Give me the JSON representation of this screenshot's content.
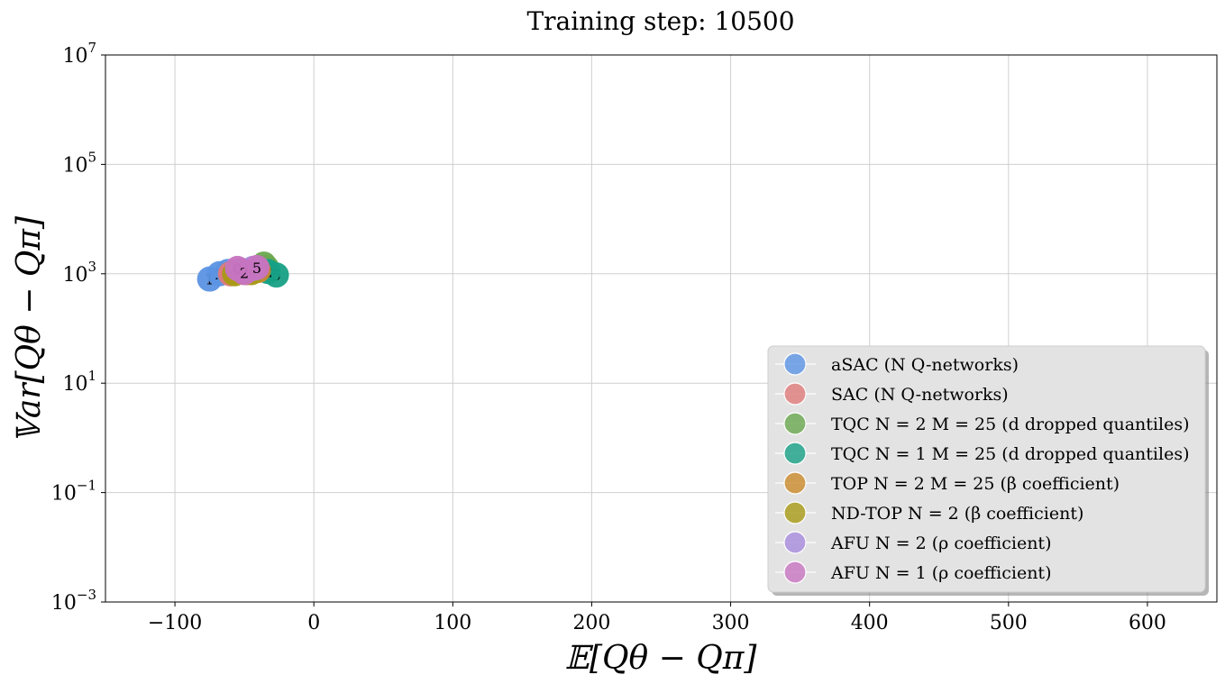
{
  "chart_data": {
    "type": "scatter",
    "title": "Training step: 10500",
    "xlabel": "𝔼[Qθ − Qπ]",
    "ylabel": "𝕍ar[Qθ − Qπ]",
    "xlim": [
      -150,
      650
    ],
    "ylim": [
      0.001,
      10000000
    ],
    "yscale": "log",
    "grid": true,
    "legend_position": "lower-right",
    "x_ticks": [
      "−100",
      "0",
      "100",
      "200",
      "300",
      "400",
      "500",
      "600"
    ],
    "x_tick_values": [
      -100,
      0,
      100,
      200,
      300,
      400,
      500,
      600
    ],
    "y_ticks": [
      {
        "base": "10",
        "exp": "−3",
        "value": 0.001
      },
      {
        "base": "10",
        "exp": "−1",
        "value": 0.1
      },
      {
        "base": "10",
        "exp": "1",
        "value": 10
      },
      {
        "base": "10",
        "exp": "3",
        "value": 1000
      },
      {
        "base": "10",
        "exp": "5",
        "value": 100000
      },
      {
        "base": "10",
        "exp": "7",
        "value": 10000000
      }
    ],
    "series": [
      {
        "name": "aSAC (N Q-networks)",
        "color": "#5b93e3",
        "points": [
          {
            "x": -75,
            "y": 800,
            "label": "1"
          },
          {
            "x": -68,
            "y": 1000,
            "label": "2"
          },
          {
            "x": -62,
            "y": 1100,
            "label": "3"
          }
        ]
      },
      {
        "name": "SAC (N Q-networks)",
        "color": "#e07a7a",
        "points": [
          {
            "x": -60,
            "y": 1000,
            "label": "2"
          },
          {
            "x": -56,
            "y": 1100,
            "label": "3"
          }
        ]
      },
      {
        "name": "TQC N = 2 M = 25 (d dropped quantiles)",
        "color": "#6aa84f",
        "points": [
          {
            "x": -36,
            "y": 1500,
            "label": "5"
          },
          {
            "x": -34,
            "y": 1300,
            "label": "3"
          }
        ]
      },
      {
        "name": "TQC N = 1 M = 25 (d dropped quantiles)",
        "color": "#16a085",
        "points": [
          {
            "x": -27,
            "y": 950,
            "label": "5"
          },
          {
            "x": -33,
            "y": 1100,
            "label": "2"
          }
        ]
      },
      {
        "name": "TOP N = 2 M = 25 (β coefficient)",
        "color": "#c98a2b",
        "points": [
          {
            "x": -48,
            "y": 1050,
            "label": "0"
          },
          {
            "x": -40,
            "y": 1150,
            "label": "1"
          }
        ]
      },
      {
        "name": "ND-TOP N = 2 (β coefficient)",
        "color": "#a89a14",
        "points": [
          {
            "x": -57,
            "y": 1000,
            "label": "0"
          },
          {
            "x": -45,
            "y": 1050,
            "label": "1"
          }
        ]
      },
      {
        "name": "AFU N = 2 (ρ coefficient)",
        "color": "#a78bdc",
        "points": [
          {
            "x": -52,
            "y": 1150,
            "label": "0"
          },
          {
            "x": -44,
            "y": 1250,
            "label": "5"
          }
        ]
      },
      {
        "name": "AFU N = 1 (ρ coefficient)",
        "color": "#c774c0",
        "points": [
          {
            "x": -55,
            "y": 1250,
            "label": "0"
          },
          {
            "x": -50,
            "y": 1050,
            "label": "2"
          },
          {
            "x": -41,
            "y": 1300,
            "label": "5"
          }
        ]
      }
    ]
  }
}
